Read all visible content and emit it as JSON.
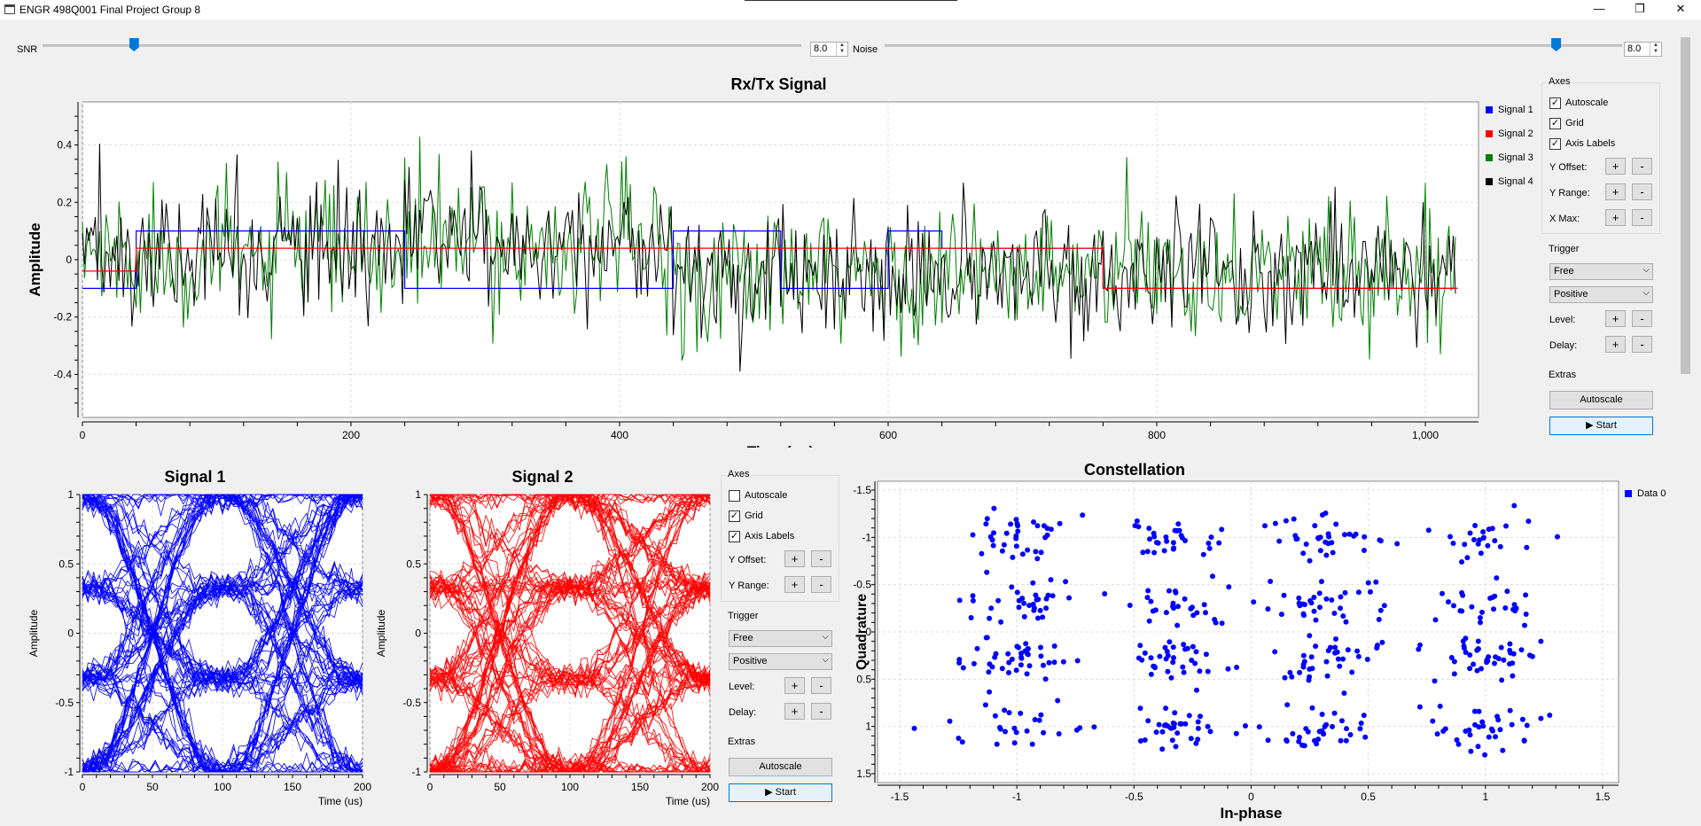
{
  "window": {
    "title": "ENGR 498Q001 Final Project Group 8",
    "min_glyph": "—",
    "max_glyph": "❐",
    "close_glyph": "✕"
  },
  "controls": {
    "snr_label": "SNR",
    "snr_value": "8.0",
    "snr_level": 0.12,
    "noise_label": "Noise",
    "noise_value": "8.0",
    "noise_level": 0.91,
    "spin_up": "▲",
    "spin_down": "▼"
  },
  "rxtx": {
    "title": "Rx/Tx Signal",
    "xlabel": "Time (us)",
    "ylabel": "Amplitude",
    "x_ticks": [
      "0",
      "200",
      "400",
      "600",
      "800",
      "1,000"
    ],
    "y_ticks": [
      "0.4",
      "0.2",
      "0",
      "-0.2",
      "-0.4"
    ],
    "legend": [
      "Signal 1",
      "Signal 2",
      "Signal 3",
      "Signal 4"
    ],
    "colors": [
      "#0000ff",
      "#ff0000",
      "#008000",
      "#000000"
    ]
  },
  "panel_top": {
    "axes_title": "Axes",
    "autoscale": "Autoscale",
    "autoscale_checked": true,
    "grid": "Grid",
    "grid_checked": true,
    "axis_labels": "Axis Labels",
    "axis_labels_checked": true,
    "y_offset": "Y Offset:",
    "y_range": "Y Range:",
    "x_max": "X Max:",
    "plus": "+",
    "minus": "-",
    "trigger_title": "Trigger",
    "trigger_mode": "Free",
    "trigger_slope": "Positive",
    "level": "Level:",
    "delay": "Delay:",
    "extras_title": "Extras",
    "autoscale_btn": "Autoscale",
    "start_btn": "▶ Start"
  },
  "eye1": {
    "title": "Signal 1",
    "xlabel": "Time (us)",
    "ylabel": "Amplitude",
    "x_ticks": [
      "0",
      "50",
      "100",
      "150",
      "200"
    ],
    "y_ticks": [
      "1",
      "0.5",
      "0",
      "-0.5",
      "-1"
    ],
    "color": "#0000ff"
  },
  "eye2": {
    "title": "Signal 2",
    "xlabel": "Time (us)",
    "ylabel": "Amplitude",
    "x_ticks": [
      "0",
      "50",
      "100",
      "150",
      "200"
    ],
    "y_ticks": [
      "1",
      "0.5",
      "0",
      "-0.5",
      "-1"
    ],
    "color": "#ff0000"
  },
  "panel_mid": {
    "axes_title": "Axes",
    "autoscale": "Autoscale",
    "autoscale_checked": false,
    "grid": "Grid",
    "grid_checked": true,
    "axis_labels": "Axis Labels",
    "axis_labels_checked": true,
    "y_offset": "Y Offset:",
    "y_range": "Y Range:",
    "plus": "+",
    "minus": "-",
    "trigger_title": "Trigger",
    "trigger_mode": "Free",
    "trigger_slope": "Positive",
    "level": "Level:",
    "delay": "Delay:",
    "extras_title": "Extras",
    "autoscale_btn": "Autoscale",
    "start_btn": "▶ Start"
  },
  "constellation": {
    "title": "Constellation",
    "xlabel": "In-phase",
    "ylabel": "Quadrature",
    "x_ticks": [
      "-1.5",
      "-1",
      "-0.5",
      "0",
      "0.5",
      "1",
      "1.5"
    ],
    "y_ticks": [
      "1.5",
      "1",
      "0.5",
      "0",
      "-0.5",
      "-1",
      "-1.5"
    ],
    "legend": "Data 0",
    "color": "#0000ff"
  },
  "chart_data": [
    {
      "type": "line",
      "title": "Rx/Tx Signal",
      "xlabel": "Time (us)",
      "ylabel": "Amplitude",
      "xlim": [
        0,
        1024
      ],
      "ylim": [
        -0.55,
        0.55
      ],
      "grid": true,
      "legend_position": "right",
      "series": [
        {
          "name": "Signal 1",
          "x": [
            0,
            40,
            40,
            240,
            240,
            440,
            440,
            520,
            520,
            600,
            600,
            640,
            640,
            760,
            760,
            1024
          ],
          "y": [
            -0.1,
            -0.1,
            0.1,
            0.1,
            -0.1,
            -0.1,
            0.1,
            0.1,
            -0.1,
            -0.1,
            0.1,
            0.1,
            0.04,
            0.04,
            -0.1,
            -0.1
          ]
        },
        {
          "name": "Signal 2",
          "x": [
            0,
            40,
            40,
            240,
            240,
            440,
            440,
            600,
            600,
            760,
            760,
            1024
          ],
          "y": [
            -0.04,
            -0.04,
            0.04,
            0.04,
            0.04,
            0.04,
            0.04,
            0.04,
            0.04,
            0.04,
            -0.1,
            -0.1
          ]
        },
        {
          "name": "Signal 3",
          "note_style": "noisy",
          "approx_range": [
            -0.45,
            0.4
          ]
        },
        {
          "name": "Signal 4",
          "note_style": "noisy",
          "approx_range": [
            -0.46,
            0.45
          ]
        }
      ]
    },
    {
      "type": "line",
      "title": "Signal 1",
      "xlabel": "Time (us)",
      "ylabel": "Amplitude",
      "xlim": [
        0,
        200
      ],
      "ylim": [
        -1,
        1
      ],
      "grid": true
    },
    {
      "type": "line",
      "title": "Signal 2",
      "xlabel": "Time (us)",
      "ylabel": "Amplitude",
      "xlim": [
        0,
        200
      ],
      "ylim": [
        -1,
        1
      ],
      "grid": true
    },
    {
      "type": "scatter",
      "title": "Constellation",
      "xlabel": "In-phase",
      "ylabel": "Quadrature",
      "xlim": [
        -1.5,
        1.5
      ],
      "ylim": [
        -1.5,
        1.5
      ],
      "grid": true,
      "legend_position": "top-right",
      "series": [
        {
          "name": "Data 0",
          "clusters_x": [
            -1,
            -0.3,
            0.3,
            1
          ],
          "clusters_y": [
            -1,
            -0.3,
            0.3,
            1
          ],
          "spread": 0.12
        }
      ]
    }
  ]
}
